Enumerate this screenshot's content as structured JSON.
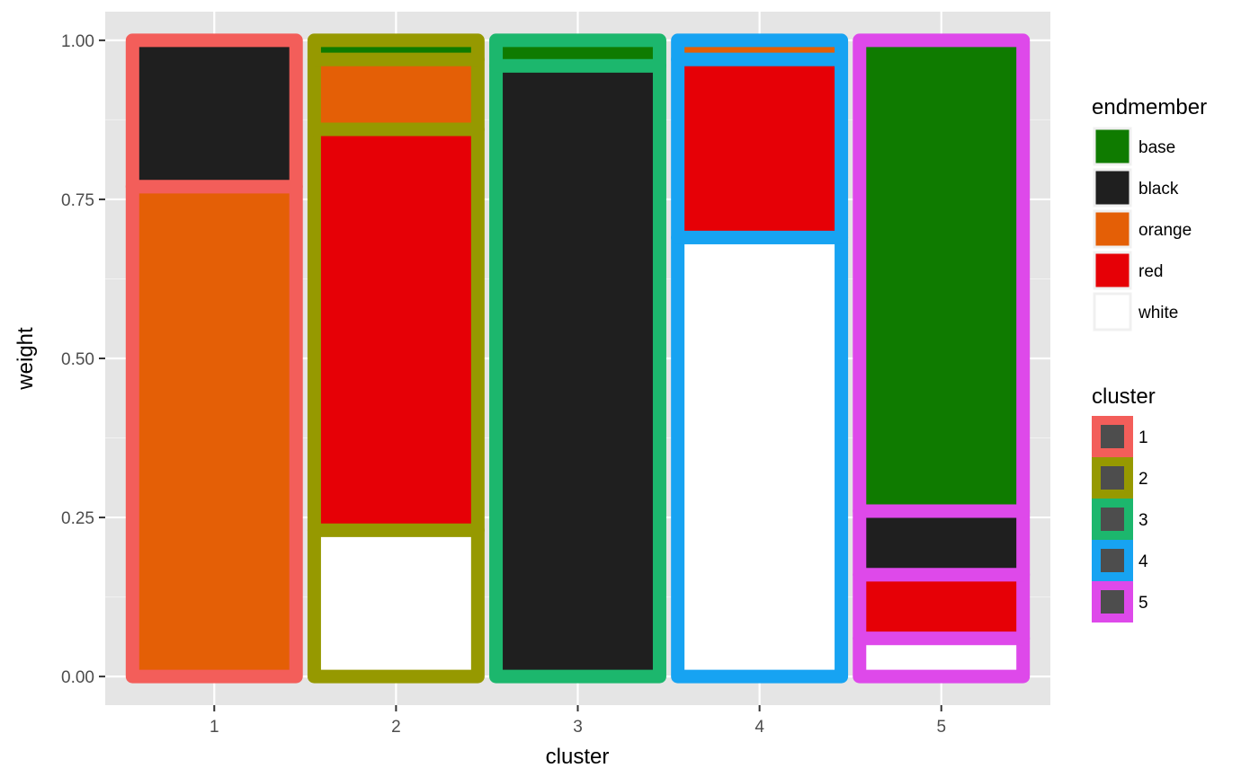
{
  "chart_data": {
    "type": "bar",
    "stacked": true,
    "xlabel": "cluster",
    "ylabel": "weight",
    "categories": [
      "1",
      "2",
      "3",
      "4",
      "5"
    ],
    "ylim": [
      -0.045,
      1.045
    ],
    "y_ticks": [
      "0.00",
      "0.25",
      "0.50",
      "0.75",
      "1.00"
    ],
    "y_tick_values": [
      0,
      0.25,
      0.5,
      0.75,
      1.0
    ],
    "grid": true,
    "stack_order_bottom_to_top": [
      "white",
      "red",
      "orange",
      "black",
      "base"
    ],
    "series": [
      {
        "name": "base",
        "color": "#0F7B00",
        "values": [
          0.0,
          0.03,
          0.04,
          0.0,
          0.74
        ]
      },
      {
        "name": "black",
        "color": "#1F1F1F",
        "values": [
          0.23,
          0.0,
          0.96,
          0.0,
          0.1
        ]
      },
      {
        "name": "orange",
        "color": "#E45F06",
        "values": [
          0.77,
          0.11,
          0.0,
          0.03,
          0.0
        ]
      },
      {
        "name": "red",
        "color": "#E60006",
        "values": [
          0.0,
          0.63,
          0.0,
          0.28,
          0.1
        ]
      },
      {
        "name": "white",
        "color": "#FFFFFF",
        "values": [
          0.0,
          0.23,
          0.0,
          0.69,
          0.06
        ]
      }
    ],
    "outline_colors": [
      "#F35E5A",
      "#969900",
      "#1CB76D",
      "#17A3F2",
      "#DE49EA"
    ],
    "legends": [
      {
        "title": "endmember",
        "entries": [
          {
            "label": "base",
            "fill": "#0F7B00"
          },
          {
            "label": "black",
            "fill": "#1F1F1F"
          },
          {
            "label": "orange",
            "fill": "#E45F06"
          },
          {
            "label": "red",
            "fill": "#E60006"
          },
          {
            "label": "white",
            "fill": "#FFFFFF"
          }
        ]
      },
      {
        "title": "cluster",
        "entries": [
          {
            "label": "1",
            "outline": "#F35E5A"
          },
          {
            "label": "2",
            "outline": "#969900"
          },
          {
            "label": "3",
            "outline": "#1CB76D"
          },
          {
            "label": "4",
            "outline": "#17A3F2"
          },
          {
            "label": "5",
            "outline": "#DE49EA"
          }
        ]
      }
    ],
    "legend_position": "right",
    "panel_background": "#E5E5E5"
  }
}
